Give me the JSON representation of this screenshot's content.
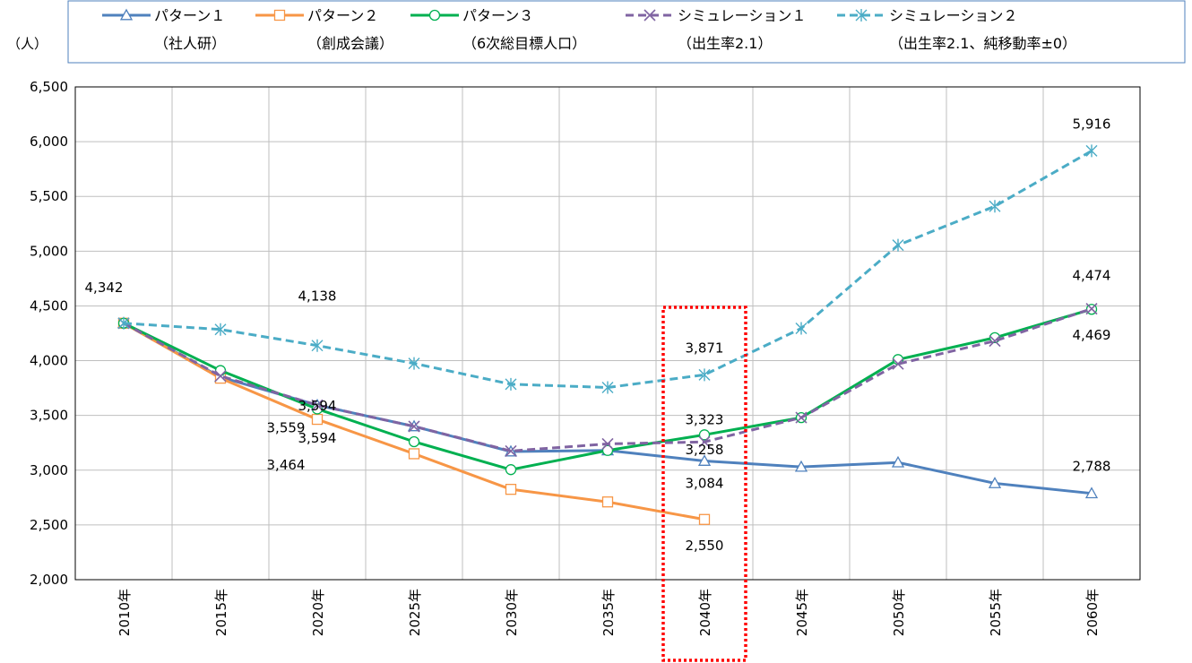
{
  "chart_data": {
    "type": "line",
    "ylabel": "（人）",
    "categories": [
      "2010年",
      "2015年",
      "2020年",
      "2025年",
      "2030年",
      "2035年",
      "2040年",
      "2045年",
      "2050年",
      "2055年",
      "2060年"
    ],
    "ylim": [
      2000,
      6500
    ],
    "yticks": [
      2000,
      2500,
      3000,
      3500,
      4000,
      4500,
      5000,
      5500,
      6000,
      6500
    ],
    "ytick_labels": [
      "2,000",
      "2,500",
      "3,000",
      "3,500",
      "4,000",
      "4,500",
      "5,000",
      "5,500",
      "6,000",
      "6,500"
    ],
    "grid": true,
    "legend_position": "top",
    "series": [
      {
        "name": "パターン１",
        "sub": "（社人研）",
        "color": "#4F81BD",
        "dashed": false,
        "marker": "triangle",
        "values": [
          4342,
          3850,
          3594,
          3400,
          3170,
          3180,
          3084,
          3030,
          3070,
          2880,
          2788
        ]
      },
      {
        "name": "パターン２",
        "sub": "（創成会議）",
        "color": "#F79646",
        "dashed": false,
        "marker": "square",
        "values": [
          4342,
          3840,
          3464,
          3150,
          2825,
          2710,
          2550,
          null,
          null,
          null,
          null
        ]
      },
      {
        "name": "パターン３",
        "sub": "（6次総目標人口）",
        "color": "#00B050",
        "dashed": false,
        "marker": "circle",
        "values": [
          4342,
          3910,
          3559,
          3260,
          3005,
          3180,
          3323,
          3480,
          4010,
          4210,
          4469
        ]
      },
      {
        "name": "シミュレーション１",
        "sub": "（出生率2.1）",
        "color": "#8064A2",
        "dashed": true,
        "marker": "x",
        "values": [
          4342,
          3860,
          3594,
          3400,
          3175,
          3240,
          3258,
          3480,
          3970,
          4180,
          4474
        ]
      },
      {
        "name": "シミュレーション２",
        "sub": "（出生率2.1、純移動率±0）",
        "color": "#4BACC6",
        "dashed": true,
        "marker": "star",
        "values": [
          4342,
          4285,
          4138,
          3975,
          3785,
          3755,
          3871,
          4295,
          5055,
          5410,
          5916
        ]
      }
    ],
    "data_labels": [
      {
        "text": "4,342",
        "cat": 0,
        "value": 4342
      },
      {
        "text": "4,138",
        "cat": 2,
        "value": 4138
      },
      {
        "text": "3,594",
        "cat": 2,
        "value": 3594
      },
      {
        "text": "3,594",
        "cat": 2,
        "value": 3594
      },
      {
        "text": "3,559",
        "cat": 2,
        "value": 3559
      },
      {
        "text": "3,464",
        "cat": 2,
        "value": 3464
      },
      {
        "text": "3,871",
        "cat": 6,
        "value": 3871
      },
      {
        "text": "3,323",
        "cat": 6,
        "value": 3323
      },
      {
        "text": "3,258",
        "cat": 6,
        "value": 3258
      },
      {
        "text": "3,084",
        "cat": 6,
        "value": 3084
      },
      {
        "text": "2,550",
        "cat": 6,
        "value": 2550
      },
      {
        "text": "5,916",
        "cat": 10,
        "value": 5916
      },
      {
        "text": "4,474",
        "cat": 10,
        "value": 4474
      },
      {
        "text": "4,469",
        "cat": 10,
        "value": 4469
      },
      {
        "text": "2,788",
        "cat": 10,
        "value": 2788
      }
    ],
    "highlight": {
      "category": "2040年",
      "color": "#FF0000"
    }
  }
}
